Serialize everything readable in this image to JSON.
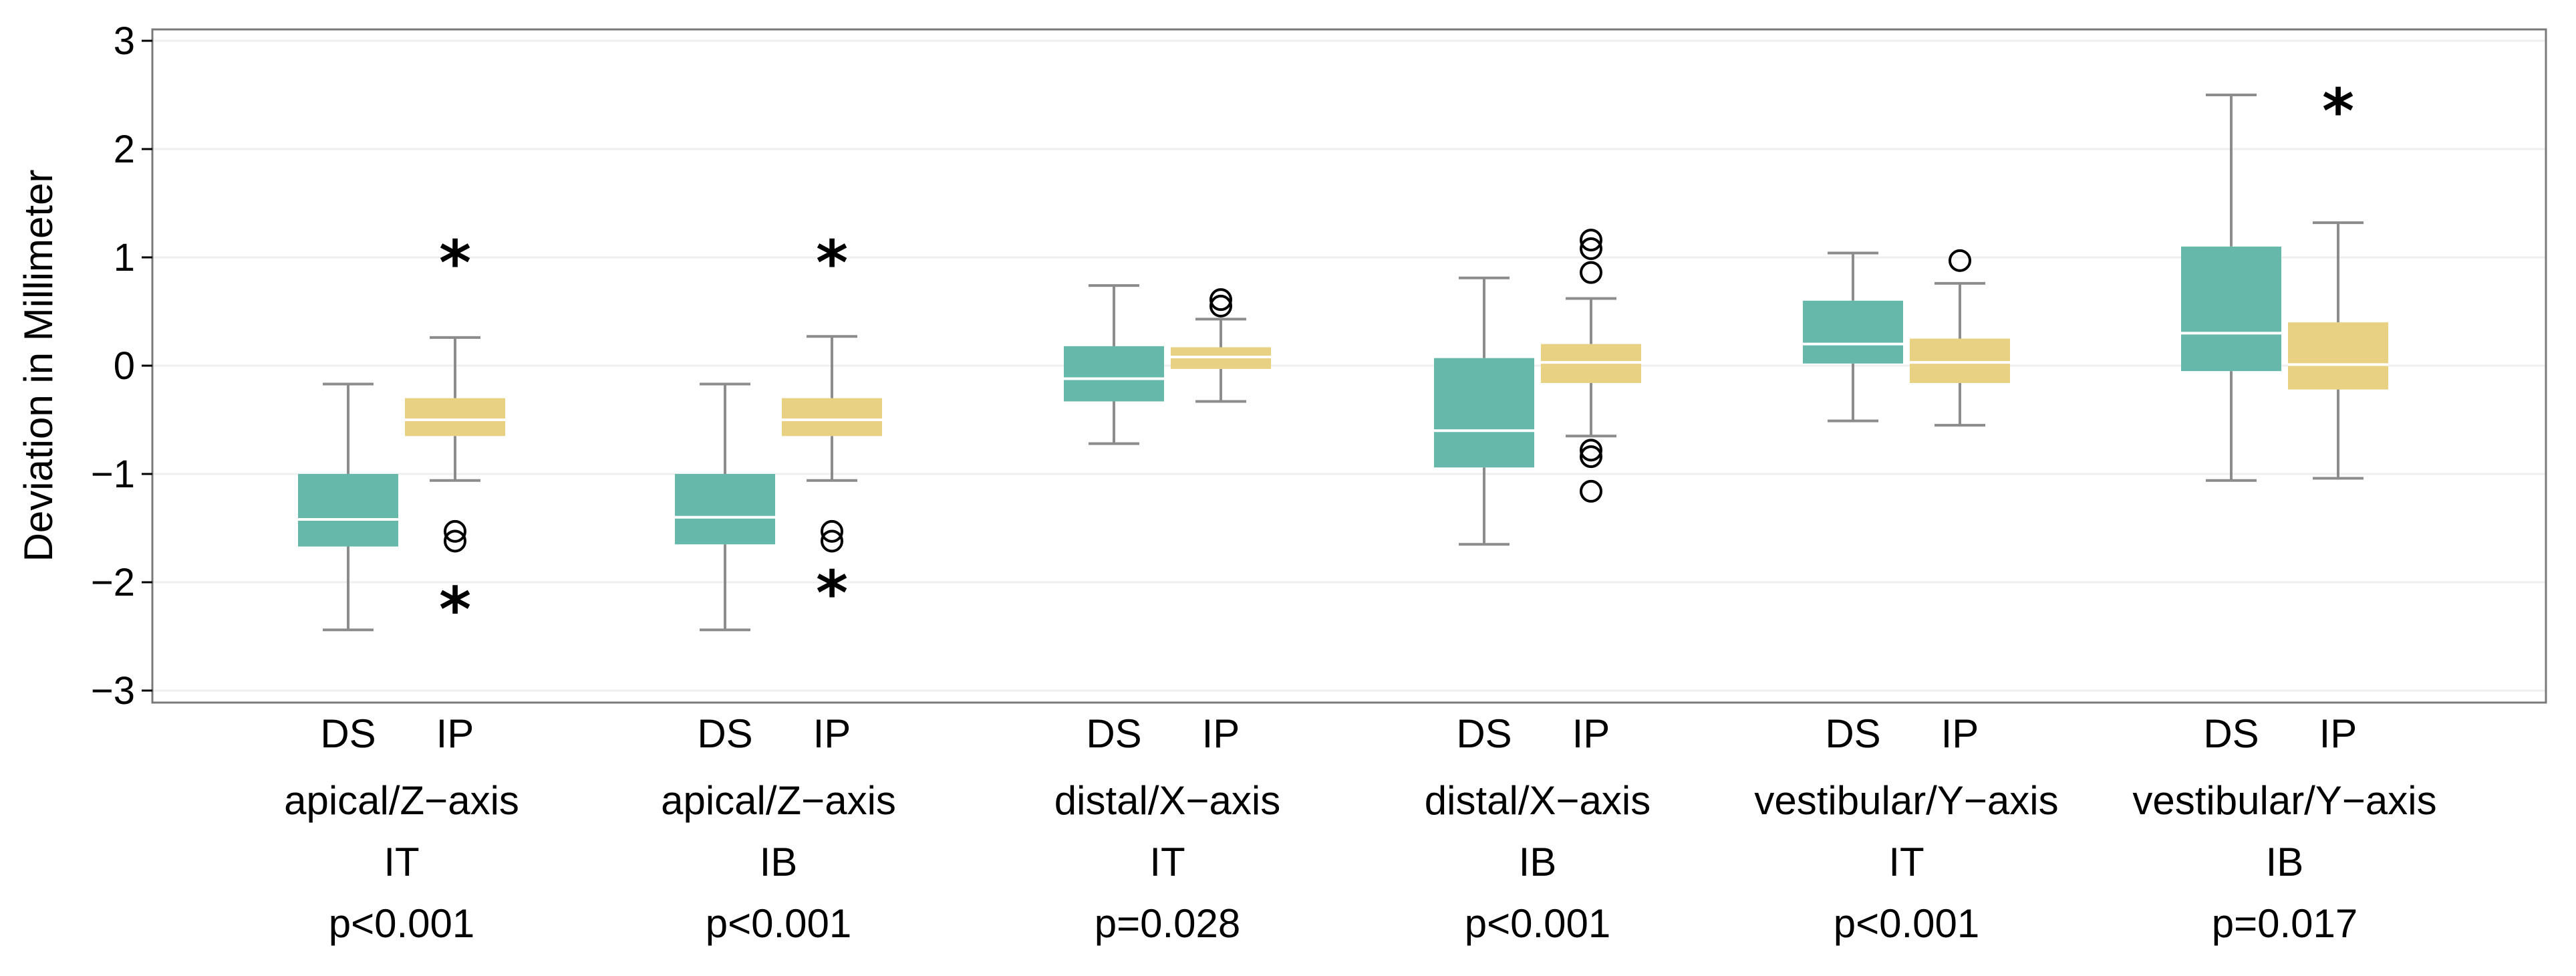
{
  "chart_data": {
    "type": "box",
    "ylabel": "Deviation in Millimeter",
    "ylim": [
      -3.1,
      3.1
    ],
    "yticks": [
      -3,
      -2,
      -1,
      0,
      1,
      2,
      3
    ],
    "ytick_labels": [
      "−3",
      "−2",
      "−1",
      "0",
      "1",
      "2",
      "3"
    ],
    "grid": "horizontal, faint",
    "colors": {
      "DS": "#66b8ab",
      "IP": "#e8d183",
      "whisker": "#8c8c8c",
      "median": "#ffffff"
    },
    "groups": [
      {
        "labels": [
          "apical/Z−axis",
          "IT",
          "p<0.001"
        ],
        "boxes": [
          {
            "name": "DS",
            "whisker_low": -2.44,
            "q1": -1.67,
            "median": -1.42,
            "q3": -1.0,
            "whisker_high": -0.17,
            "outliers": [],
            "extremes": []
          },
          {
            "name": "IP",
            "whisker_low": -1.06,
            "q1": -0.65,
            "median": -0.5,
            "q3": -0.3,
            "whisker_high": 0.26,
            "outliers": [
              -1.53,
              -1.62
            ],
            "extremes": [
              1.0,
              -2.2
            ]
          }
        ]
      },
      {
        "labels": [
          "apical/Z−axis",
          "IB",
          "p<0.001"
        ],
        "boxes": [
          {
            "name": "DS",
            "whisker_low": -2.44,
            "q1": -1.65,
            "median": -1.4,
            "q3": -1.0,
            "whisker_high": -0.17,
            "outliers": [],
            "extremes": []
          },
          {
            "name": "IP",
            "whisker_low": -1.06,
            "q1": -0.65,
            "median": -0.5,
            "q3": -0.3,
            "whisker_high": 0.27,
            "outliers": [
              -1.53,
              -1.62
            ],
            "extremes": [
              1.0,
              -2.05
            ]
          }
        ]
      },
      {
        "labels": [
          "distal/X−axis",
          "IT",
          "p=0.028"
        ],
        "boxes": [
          {
            "name": "DS",
            "whisker_low": -0.72,
            "q1": -0.33,
            "median": -0.12,
            "q3": 0.18,
            "whisker_high": 0.74,
            "outliers": [],
            "extremes": []
          },
          {
            "name": "IP",
            "whisker_low": -0.33,
            "q1": -0.03,
            "median": 0.08,
            "q3": 0.17,
            "whisker_high": 0.43,
            "outliers": [
              0.61,
              0.55
            ],
            "extremes": []
          }
        ]
      },
      {
        "labels": [
          "distal/X−axis",
          "IB",
          "p<0.001"
        ],
        "boxes": [
          {
            "name": "DS",
            "whisker_low": -1.65,
            "q1": -0.94,
            "median": -0.6,
            "q3": 0.07,
            "whisker_high": 0.81,
            "outliers": [],
            "extremes": []
          },
          {
            "name": "IP",
            "whisker_low": -0.65,
            "q1": -0.16,
            "median": 0.03,
            "q3": 0.2,
            "whisker_high": 0.62,
            "outliers": [
              1.16,
              1.08,
              0.86,
              -0.78,
              -0.84,
              -1.16
            ],
            "extremes": []
          }
        ]
      },
      {
        "labels": [
          "vestibular/Y−axis",
          "IT",
          "p<0.001"
        ],
        "boxes": [
          {
            "name": "DS",
            "whisker_low": -0.51,
            "q1": 0.02,
            "median": 0.2,
            "q3": 0.6,
            "whisker_high": 1.04,
            "outliers": [],
            "extremes": []
          },
          {
            "name": "IP",
            "whisker_low": -0.55,
            "q1": -0.16,
            "median": 0.03,
            "q3": 0.25,
            "whisker_high": 0.76,
            "outliers": [
              0.97
            ],
            "extremes": []
          }
        ]
      },
      {
        "labels": [
          "vestibular/Y−axis",
          "IB",
          "p=0.017"
        ],
        "boxes": [
          {
            "name": "DS",
            "whisker_low": -1.06,
            "q1": -0.05,
            "median": 0.3,
            "q3": 1.1,
            "whisker_high": 2.5,
            "outliers": [],
            "extremes": []
          },
          {
            "name": "IP",
            "whisker_low": -1.04,
            "q1": -0.22,
            "median": 0.01,
            "q3": 0.4,
            "whisker_high": 1.32,
            "outliers": [],
            "extremes": [
              2.4
            ]
          }
        ]
      }
    ]
  }
}
